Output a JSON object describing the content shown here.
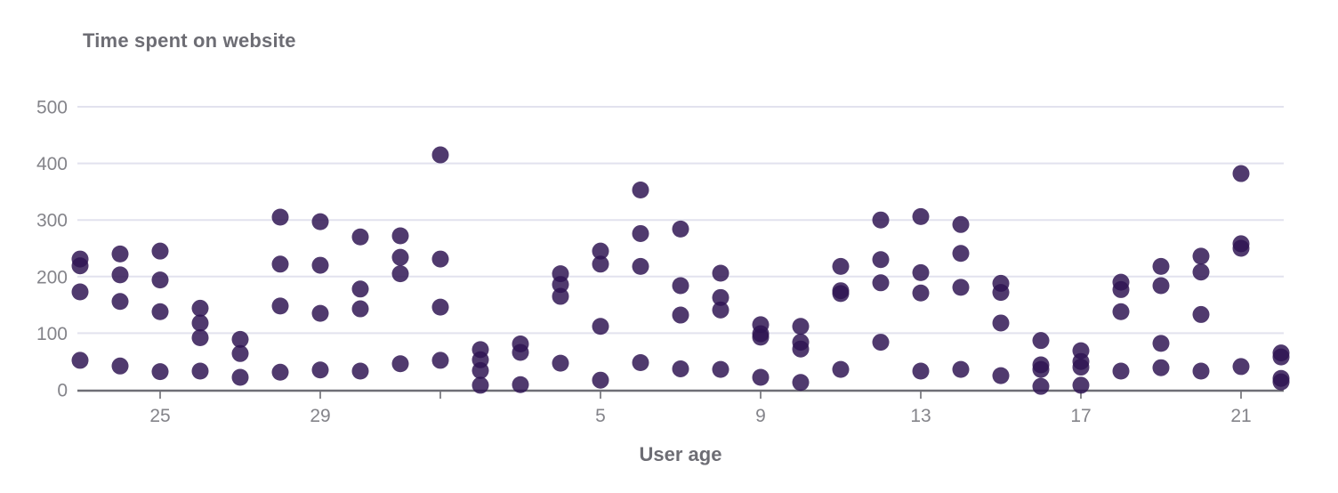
{
  "page": {
    "background": "#ffffff"
  },
  "chart_data": {
    "type": "scatter",
    "title": "Time spent on website",
    "xlabel": "User age",
    "ylabel": "",
    "ylim": [
      0,
      500
    ],
    "y_ticks": [
      0,
      100,
      200,
      300,
      400,
      500
    ],
    "x_axis": {
      "range": [
        22.9,
        53.1
      ],
      "note": "day-sequence axis; positions past 31 wrap to next period (32 shown as unlabeled tick, 36='5', 40='9', 44='13', 48='17', 52='21')",
      "ticks": [
        {
          "pos": 25,
          "label": "25"
        },
        {
          "pos": 29,
          "label": "29"
        },
        {
          "pos": 32,
          "label": ""
        },
        {
          "pos": 36,
          "label": "5"
        },
        {
          "pos": 40,
          "label": "9"
        },
        {
          "pos": 44,
          "label": "13"
        },
        {
          "pos": 48,
          "label": "17"
        },
        {
          "pos": 52,
          "label": "21"
        }
      ]
    },
    "grid": true,
    "legend": "none",
    "point_style": {
      "color": "#2f1452",
      "opacity": 0.84,
      "radius": 9.5
    },
    "points_format": "[x_position, minutes]",
    "points": [
      [
        23,
        231
      ],
      [
        23,
        219
      ],
      [
        23,
        173
      ],
      [
        23,
        52
      ],
      [
        24,
        240
      ],
      [
        24,
        203
      ],
      [
        24,
        156
      ],
      [
        24,
        42
      ],
      [
        25,
        245
      ],
      [
        25,
        194
      ],
      [
        25,
        138
      ],
      [
        25,
        32
      ],
      [
        26,
        144
      ],
      [
        26,
        118
      ],
      [
        26,
        92
      ],
      [
        26,
        33
      ],
      [
        27,
        89
      ],
      [
        27,
        64
      ],
      [
        27,
        22
      ],
      [
        28,
        305
      ],
      [
        28,
        222
      ],
      [
        28,
        148
      ],
      [
        28,
        31
      ],
      [
        29,
        297
      ],
      [
        29,
        220
      ],
      [
        29,
        135
      ],
      [
        29,
        35
      ],
      [
        30,
        270
      ],
      [
        30,
        178
      ],
      [
        30,
        143
      ],
      [
        30,
        33
      ],
      [
        31,
        272
      ],
      [
        31,
        234
      ],
      [
        31,
        205
      ],
      [
        31,
        46
      ],
      [
        32,
        415
      ],
      [
        32,
        231
      ],
      [
        32,
        146
      ],
      [
        32,
        52
      ],
      [
        33,
        71
      ],
      [
        33,
        53
      ],
      [
        33,
        34
      ],
      [
        33,
        8
      ],
      [
        34,
        81
      ],
      [
        34,
        66
      ],
      [
        34,
        9
      ],
      [
        35,
        205
      ],
      [
        35,
        186
      ],
      [
        35,
        165
      ],
      [
        35,
        47
      ],
      [
        36,
        245
      ],
      [
        36,
        222
      ],
      [
        36,
        112
      ],
      [
        36,
        17
      ],
      [
        37,
        353
      ],
      [
        37,
        276
      ],
      [
        37,
        218
      ],
      [
        37,
        48
      ],
      [
        38,
        284
      ],
      [
        38,
        184
      ],
      [
        38,
        132
      ],
      [
        38,
        37
      ],
      [
        39,
        206
      ],
      [
        39,
        163
      ],
      [
        39,
        141
      ],
      [
        39,
        36
      ],
      [
        40,
        115
      ],
      [
        40,
        99
      ],
      [
        40,
        93
      ],
      [
        40,
        22
      ],
      [
        41,
        112
      ],
      [
        41,
        84
      ],
      [
        41,
        72
      ],
      [
        41,
        13
      ],
      [
        42,
        218
      ],
      [
        42,
        175
      ],
      [
        42,
        170
      ],
      [
        42,
        36
      ],
      [
        43,
        300
      ],
      [
        43,
        230
      ],
      [
        43,
        189
      ],
      [
        43,
        84
      ],
      [
        44,
        306
      ],
      [
        44,
        207
      ],
      [
        44,
        171
      ],
      [
        44,
        33
      ],
      [
        45,
        292
      ],
      [
        45,
        241
      ],
      [
        45,
        181
      ],
      [
        45,
        36
      ],
      [
        46,
        188
      ],
      [
        46,
        172
      ],
      [
        46,
        118
      ],
      [
        46,
        25
      ],
      [
        47,
        87
      ],
      [
        47,
        44
      ],
      [
        47,
        36
      ],
      [
        47,
        6
      ],
      [
        48,
        69
      ],
      [
        48,
        50
      ],
      [
        48,
        40
      ],
      [
        48,
        8
      ],
      [
        49,
        190
      ],
      [
        49,
        177
      ],
      [
        49,
        138
      ],
      [
        49,
        33
      ],
      [
        50,
        218
      ],
      [
        50,
        184
      ],
      [
        50,
        82
      ],
      [
        50,
        39
      ],
      [
        51,
        236
      ],
      [
        51,
        208
      ],
      [
        51,
        133
      ],
      [
        51,
        33
      ],
      [
        52,
        382
      ],
      [
        52,
        258
      ],
      [
        52,
        250
      ],
      [
        52,
        41
      ],
      [
        53,
        65
      ],
      [
        53,
        58
      ],
      [
        53,
        20
      ],
      [
        53,
        14
      ]
    ]
  },
  "colors": {
    "title": "#6d6d74",
    "axis_labels": "#84848a",
    "gridline": "#e2e2ee",
    "axis_line": "#6f6f76",
    "tick_mark": "#7c7c82",
    "point": "#2f1452"
  }
}
